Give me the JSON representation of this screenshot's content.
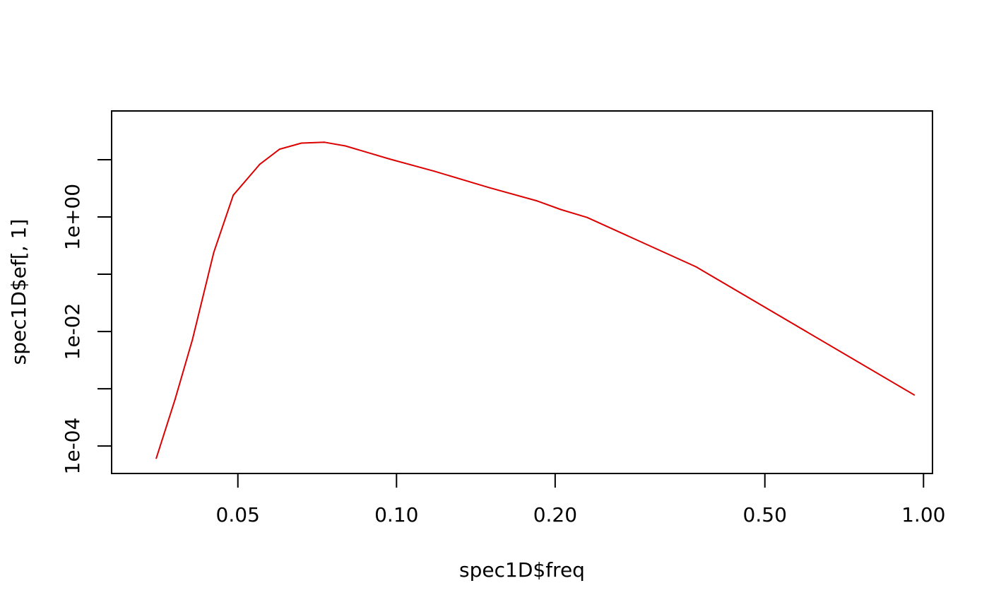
{
  "chart_data": {
    "type": "line",
    "title": "",
    "xlabel": "spec1D$freq",
    "ylabel": "spec1D$ef[, 1]",
    "x_scale": "log",
    "y_scale": "log",
    "xlim": [
      0.0288,
      1.04
    ],
    "ylim": [
      3.31e-05,
      71.1
    ],
    "grid": false,
    "legend": "none",
    "x_ticks": [
      {
        "value": 0.05,
        "label": "0.05"
      },
      {
        "value": 0.1,
        "label": "0.10"
      },
      {
        "value": 0.2,
        "label": "0.20"
      },
      {
        "value": 0.5,
        "label": "0.50"
      },
      {
        "value": 1.0,
        "label": "1.00"
      }
    ],
    "y_ticks": [
      {
        "value": 0.0001,
        "label": "1e-04"
      },
      {
        "value": 0.001,
        "label": ""
      },
      {
        "value": 0.01,
        "label": "1e-02"
      },
      {
        "value": 0.1,
        "label": ""
      },
      {
        "value": 1,
        "label": "1e+00"
      },
      {
        "value": 10,
        "label": ""
      }
    ],
    "series": [
      {
        "color": "#dd0000",
        "x": [
          0.035,
          0.038,
          0.041,
          0.045,
          0.049,
          0.055,
          0.06,
          0.066,
          0.073,
          0.08,
          0.097,
          0.118,
          0.15,
          0.185,
          0.205,
          0.23,
          0.37,
          0.96
        ],
        "y": [
          6.1e-05,
          0.00065,
          0.0072,
          0.24,
          2.4,
          8.3,
          15.3,
          19.5,
          20.2,
          17.4,
          10.3,
          6.3,
          3.25,
          1.9,
          1.35,
          0.98,
          0.135,
          0.00078
        ]
      }
    ]
  }
}
